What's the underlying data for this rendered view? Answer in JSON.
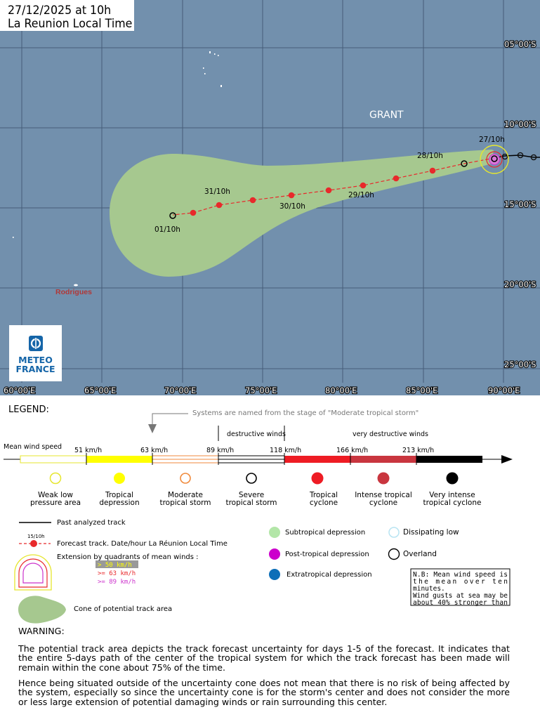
{
  "header": {
    "line1": "27/12/2025 at 10h",
    "line2": "La Reunion Local Time"
  },
  "map": {
    "storm_name": "GRANT",
    "island_label": "Rodrigues",
    "lat_labels": [
      "05°00'S",
      "10°00'S",
      "15°00'S",
      "20°00'S",
      "25°00'S"
    ],
    "lon_labels": [
      "60°00'E",
      "65°00'E",
      "70°00'E",
      "75°00'E",
      "80°00'E",
      "85°00'E",
      "90°00'E"
    ],
    "track_labels": {
      "d27": "27/10h",
      "d28": "28/10h",
      "d29": "29/10h",
      "d30": "30/10h",
      "d31": "31/10h",
      "d01": "01/10h"
    }
  },
  "logo": {
    "line1": "METEO",
    "line2": "FRANCE"
  },
  "legend": {
    "title": "LEGEND:",
    "naming_note": "Systems are named from the stage of \"Moderate tropical storm\"",
    "destructive": "destructive winds",
    "very_destructive": "very destructive winds",
    "mean_wind": "Mean wind speed",
    "thresholds": [
      "51 km/h",
      "63 km/h",
      "89 km/h",
      "118 km/h",
      "166 km/h",
      "213 km/h"
    ],
    "categories": [
      [
        "Weak low",
        "pressure area"
      ],
      [
        "Tropical",
        "depression"
      ],
      [
        "Moderate",
        "tropical storm"
      ],
      [
        "Severe",
        "tropical storm"
      ],
      [
        "Tropical",
        "cyclone"
      ],
      [
        "Intense tropical",
        "cyclone"
      ],
      [
        "Very intense",
        "tropical cyclone"
      ]
    ],
    "past_track": "Past analyzed track",
    "forecast_sample": "15/10h",
    "forecast_track": "Forecast track. Date/hour La Réunion Local Time",
    "extension_title": "Extension by quadrants of mean winds :",
    "ext_50": "> 50 km/h",
    "ext_63": ">= 63 km/h",
    "ext_89": ">= 89 km/h",
    "cone": "Cone of potential track area",
    "subtropical": "Subtropical depression",
    "posttropical": "Post-tropical depression",
    "extratropical": "Extratropical depression",
    "dissipating": "Dissipating low",
    "overland": "Overland",
    "nb_lines": [
      "N.B: Mean wind speed is",
      "the mean over ten",
      "minutes.",
      "Wind gusts at sea may be",
      "about 40% stronger than"
    ]
  },
  "warning": {
    "title": "WARNING:",
    "p1": "The potential track area depicts the track forecast uncertainty for days 1-5 of the forecast. It indicates that the entire 5-days path of the center of the tropical system for which the track forecast has been made will remain within the cone about 75% of the time.",
    "p2": "Hence being situated outside of the uncertainty cone does not mean that there is no risk of being affected by the system, especially so since the uncertainty cone is for the storm's center and does not consider the more or less large extension of potential damaging winds or rain surrounding this center."
  },
  "colors": {
    "ocean": "#7290ad",
    "cone": "#a6c88f",
    "forecast": "#e8292b",
    "td_yellow": "#ffff00",
    "mts_orange": "#f08a3c",
    "tc_red": "#ee1c24",
    "itc_red": "#c9363f",
    "vitc_black": "#000000",
    "post_magenta": "#cc00cc",
    "extra_blue": "#0d6fb8",
    "sub_green": "#b3e6a8"
  }
}
